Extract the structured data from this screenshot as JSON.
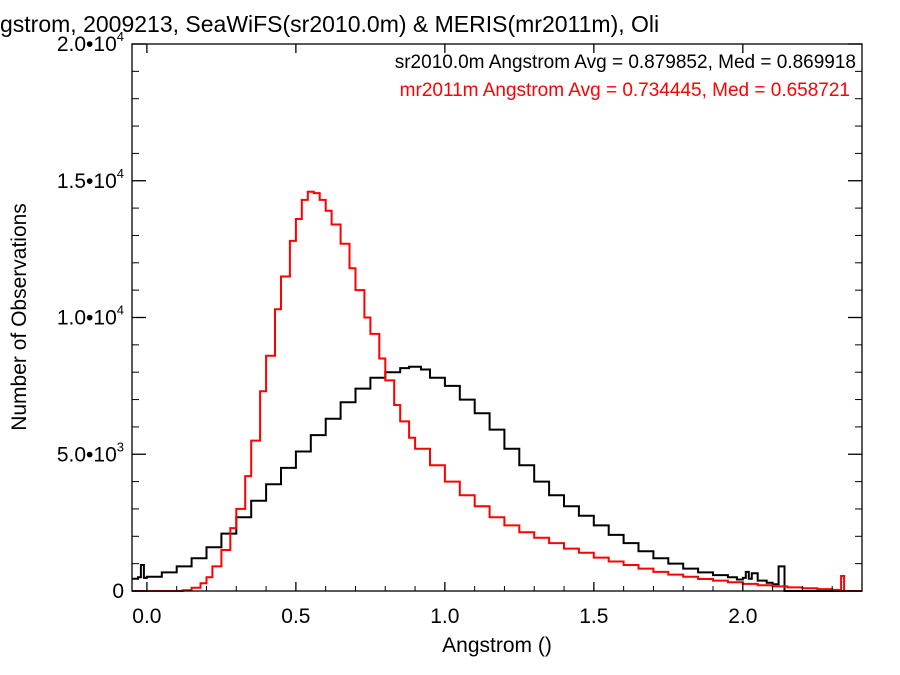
{
  "chart_data": {
    "type": "line",
    "title": "gstrom, 2009213, SeaWiFS(sr2010.0m) & MERIS(mr2011m), Oli",
    "xlabel": "Angstrom ()",
    "ylabel": "Number of Observations",
    "xlim": [
      -0.05,
      2.4
    ],
    "ylim": [
      0,
      20000
    ],
    "grid": false,
    "x_ticks": [
      {
        "value": 0.0,
        "label": "0.0"
      },
      {
        "value": 0.5,
        "label": "0.5"
      },
      {
        "value": 1.0,
        "label": "1.0"
      },
      {
        "value": 1.5,
        "label": "1.5"
      },
      {
        "value": 2.0,
        "label": "2.0"
      }
    ],
    "y_ticks": [
      {
        "value": 0,
        "mant": "0",
        "exp": ""
      },
      {
        "value": 5000,
        "mant": "5.0•10",
        "exp": "3"
      },
      {
        "value": 10000,
        "mant": "1.0•10",
        "exp": "4"
      },
      {
        "value": 15000,
        "mant": "1.5•10",
        "exp": "4"
      },
      {
        "value": 20000,
        "mant": "2.0•10",
        "exp": "4"
      }
    ],
    "annotations": [
      {
        "text": "sr2010.0m Angstrom Avg = 0.879852, Med = 0.869918",
        "color": "#000000"
      },
      {
        "text": "mr2011m Angstrom Avg = 0.734445, Med = 0.658721",
        "color": "#ff0000"
      }
    ],
    "series": [
      {
        "color": "#000000",
        "style": "step",
        "points": [
          [
            -0.05,
            450
          ],
          [
            -0.03,
            500
          ],
          [
            -0.02,
            950
          ],
          [
            -0.01,
            480
          ],
          [
            0.0,
            520
          ],
          [
            0.05,
            680
          ],
          [
            0.1,
            900
          ],
          [
            0.15,
            1200
          ],
          [
            0.2,
            1600
          ],
          [
            0.25,
            2100
          ],
          [
            0.3,
            2700
          ],
          [
            0.35,
            3300
          ],
          [
            0.4,
            3900
          ],
          [
            0.45,
            4500
          ],
          [
            0.5,
            5100
          ],
          [
            0.55,
            5700
          ],
          [
            0.6,
            6300
          ],
          [
            0.65,
            6900
          ],
          [
            0.7,
            7400
          ],
          [
            0.75,
            7800
          ],
          [
            0.8,
            8000
          ],
          [
            0.85,
            8150
          ],
          [
            0.88,
            8200
          ],
          [
            0.92,
            8100
          ],
          [
            0.95,
            7800
          ],
          [
            1.0,
            7500
          ],
          [
            1.05,
            7000
          ],
          [
            1.1,
            6500
          ],
          [
            1.15,
            5900
          ],
          [
            1.2,
            5200
          ],
          [
            1.25,
            4600
          ],
          [
            1.3,
            4000
          ],
          [
            1.35,
            3500
          ],
          [
            1.4,
            3100
          ],
          [
            1.45,
            2750
          ],
          [
            1.5,
            2400
          ],
          [
            1.55,
            2050
          ],
          [
            1.6,
            1750
          ],
          [
            1.65,
            1450
          ],
          [
            1.7,
            1200
          ],
          [
            1.75,
            1000
          ],
          [
            1.8,
            820
          ],
          [
            1.85,
            680
          ],
          [
            1.9,
            580
          ],
          [
            1.95,
            500
          ],
          [
            1.98,
            420
          ],
          [
            2.0,
            480
          ],
          [
            2.01,
            700
          ],
          [
            2.02,
            450
          ],
          [
            2.03,
            650
          ],
          [
            2.05,
            380
          ],
          [
            2.08,
            300
          ],
          [
            2.1,
            250
          ],
          [
            2.12,
            900
          ],
          [
            2.13,
            900
          ],
          [
            2.14,
            0
          ],
          [
            2.4,
            0
          ]
        ]
      },
      {
        "color": "#ff0000",
        "style": "step",
        "points": [
          [
            -0.05,
            0
          ],
          [
            0.1,
            0
          ],
          [
            0.12,
            30
          ],
          [
            0.15,
            120
          ],
          [
            0.18,
            280
          ],
          [
            0.2,
            500
          ],
          [
            0.22,
            900
          ],
          [
            0.25,
            1500
          ],
          [
            0.28,
            2300
          ],
          [
            0.3,
            3000
          ],
          [
            0.33,
            4200
          ],
          [
            0.35,
            5500
          ],
          [
            0.38,
            7300
          ],
          [
            0.4,
            8600
          ],
          [
            0.43,
            10300
          ],
          [
            0.45,
            11500
          ],
          [
            0.48,
            12800
          ],
          [
            0.5,
            13600
          ],
          [
            0.52,
            14300
          ],
          [
            0.54,
            14600
          ],
          [
            0.56,
            14550
          ],
          [
            0.58,
            14300
          ],
          [
            0.6,
            13900
          ],
          [
            0.62,
            13400
          ],
          [
            0.65,
            12700
          ],
          [
            0.68,
            11800
          ],
          [
            0.7,
            11000
          ],
          [
            0.73,
            10000
          ],
          [
            0.75,
            9400
          ],
          [
            0.78,
            8500
          ],
          [
            0.8,
            7700
          ],
          [
            0.83,
            6800
          ],
          [
            0.85,
            6200
          ],
          [
            0.88,
            5600
          ],
          [
            0.9,
            5200
          ],
          [
            0.95,
            4600
          ],
          [
            1.0,
            4000
          ],
          [
            1.05,
            3500
          ],
          [
            1.1,
            3100
          ],
          [
            1.15,
            2700
          ],
          [
            1.2,
            2400
          ],
          [
            1.25,
            2150
          ],
          [
            1.3,
            1950
          ],
          [
            1.35,
            1750
          ],
          [
            1.4,
            1550
          ],
          [
            1.45,
            1400
          ],
          [
            1.5,
            1220
          ],
          [
            1.55,
            1080
          ],
          [
            1.6,
            950
          ],
          [
            1.65,
            820
          ],
          [
            1.7,
            700
          ],
          [
            1.75,
            600
          ],
          [
            1.8,
            520
          ],
          [
            1.85,
            440
          ],
          [
            1.9,
            380
          ],
          [
            1.95,
            320
          ],
          [
            2.0,
            260
          ],
          [
            2.05,
            210
          ],
          [
            2.1,
            170
          ],
          [
            2.15,
            130
          ],
          [
            2.2,
            100
          ],
          [
            2.25,
            70
          ],
          [
            2.3,
            40
          ],
          [
            2.32,
            30
          ],
          [
            2.33,
            550
          ],
          [
            2.34,
            0
          ],
          [
            2.4,
            0
          ]
        ]
      }
    ]
  }
}
